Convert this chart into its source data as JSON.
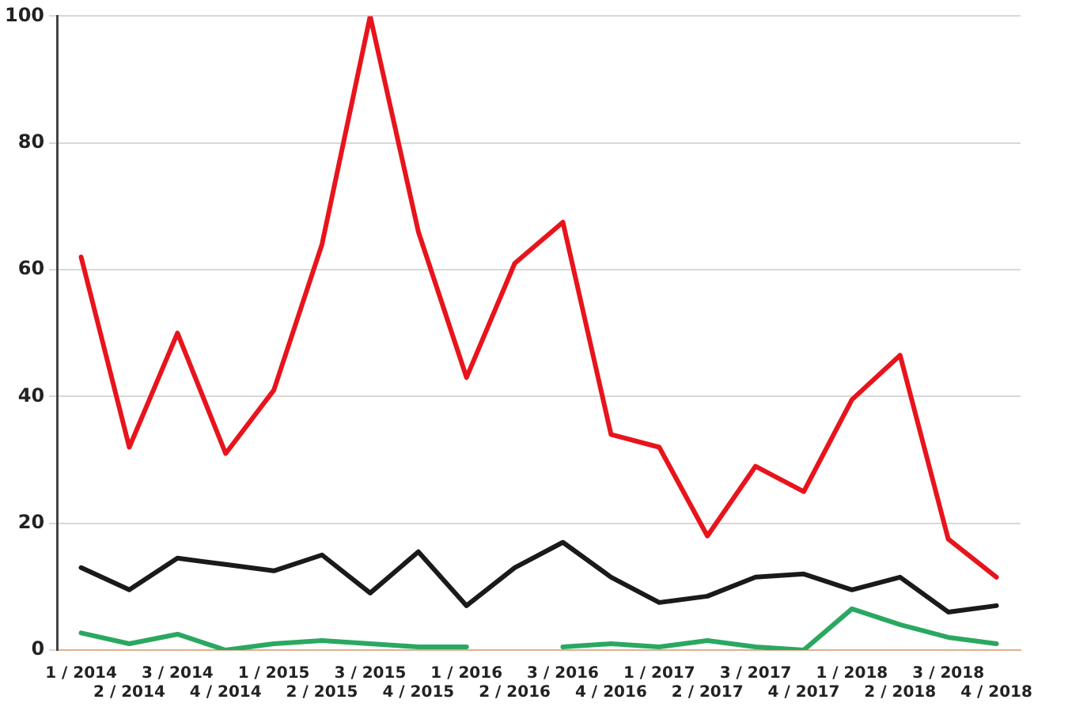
{
  "chart_data": {
    "type": "line",
    "categories": [
      "1 / 2014",
      "2 / 2014",
      "3 / 2014",
      "4 / 2014",
      "1 / 2015",
      "2 / 2015",
      "3 / 2015",
      "4 / 2015",
      "1 / 2016",
      "2 / 2016",
      "3 / 2016",
      "4 / 2016",
      "1 / 2017",
      "2 / 2017",
      "3 / 2017",
      "4 / 2017",
      "1 / 2018",
      "2 / 2018",
      "3 / 2018",
      "4 / 2018"
    ],
    "series": [
      {
        "color": "#e8141c",
        "values": [
          62,
          32,
          50,
          31,
          41,
          64,
          100,
          66,
          43,
          61,
          67.5,
          34,
          32,
          18,
          29,
          25,
          39.5,
          46.5,
          17.5,
          11.5
        ]
      },
      {
        "color": "#1a1a1a",
        "values": [
          13,
          9.5,
          14.5,
          13.5,
          12.5,
          15,
          9,
          15.5,
          7,
          13,
          17,
          11.5,
          7.5,
          8.5,
          11.5,
          12,
          9.5,
          11.5,
          6,
          7
        ]
      },
      {
        "color": "#2aa860",
        "values": [
          2.7,
          1,
          2.5,
          0,
          1,
          1.5,
          1,
          0.5,
          0.5,
          null,
          0.5,
          1,
          0.5,
          1.5,
          0.5,
          0,
          6.5,
          4,
          2,
          1
        ]
      }
    ],
    "ylim": [
      0,
      100
    ],
    "yticks": [
      0,
      20,
      40,
      60,
      80,
      100
    ],
    "grid": "y",
    "legend": false,
    "marker": "none",
    "line_style": "solid"
  }
}
